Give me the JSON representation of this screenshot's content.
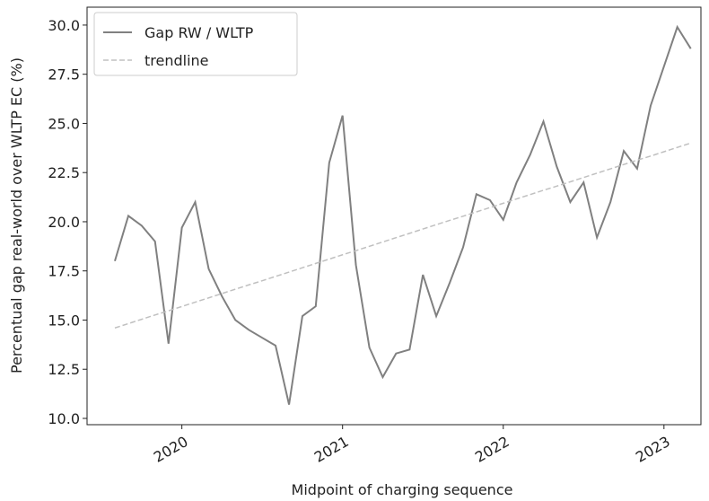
{
  "chart_data": {
    "type": "line",
    "xlabel": "Midpoint of charging sequence",
    "ylabel": "Percentual gap real-world over WLTP EC (%)",
    "x": [
      2019.583,
      2019.667,
      2019.75,
      2019.833,
      2019.917,
      2020,
      2020.083,
      2020.167,
      2020.25,
      2020.333,
      2020.417,
      2020.5,
      2020.583,
      2020.667,
      2020.75,
      2020.833,
      2020.917,
      2021,
      2021.083,
      2021.167,
      2021.25,
      2021.333,
      2021.417,
      2021.5,
      2021.583,
      2021.667,
      2021.75,
      2021.833,
      2021.917,
      2022,
      2022.083,
      2022.167,
      2022.25,
      2022.333,
      2022.417,
      2022.5,
      2022.583,
      2022.667,
      2022.75,
      2022.833,
      2022.917,
      2023,
      2023.083,
      2023.167
    ],
    "series": [
      {
        "name": "Gap RW / WLTP",
        "color": "#808080",
        "dash": false,
        "values": [
          18.0,
          20.3,
          19.8,
          19.0,
          13.8,
          19.7,
          21.0,
          17.6,
          16.2,
          15.0,
          14.5,
          14.1,
          13.7,
          10.7,
          15.2,
          15.7,
          23.0,
          25.4,
          17.8,
          13.6,
          12.1,
          13.3,
          13.5,
          17.3,
          15.2,
          16.9,
          18.7,
          21.4,
          21.1,
          20.1,
          22.0,
          23.4,
          25.1,
          22.8,
          21.0,
          22.0,
          19.2,
          21.0,
          23.6,
          22.7,
          25.9,
          27.9,
          29.9,
          28.8
        ]
      },
      {
        "name": "trendline",
        "color": "#c0c0c0",
        "dash": true,
        "values": [
          14.6,
          14.82,
          15.04,
          15.26,
          15.47,
          15.69,
          15.91,
          16.13,
          16.35,
          16.57,
          16.79,
          17.0,
          17.22,
          17.44,
          17.66,
          17.88,
          18.1,
          18.32,
          18.53,
          18.75,
          18.97,
          19.19,
          19.41,
          19.63,
          19.85,
          20.07,
          20.28,
          20.5,
          20.72,
          20.94,
          21.16,
          21.38,
          21.6,
          21.81,
          22.03,
          22.25,
          22.47,
          22.69,
          22.91,
          23.13,
          23.34,
          23.56,
          23.78,
          24.0
        ]
      }
    ],
    "xlim": [
      2019.41,
      2023.23
    ],
    "xticks": [
      2020,
      2021,
      2022,
      2023
    ],
    "ylim": [
      9.68,
      30.91
    ],
    "yticks": [
      {
        "value": 10,
        "label": "10.0"
      },
      {
        "value": 12.5,
        "label": "12.5"
      },
      {
        "value": 15,
        "label": "15.0"
      },
      {
        "value": 17.5,
        "label": "17.5"
      },
      {
        "value": 20,
        "label": "20.0"
      },
      {
        "value": 22.5,
        "label": "22.5"
      },
      {
        "value": 25,
        "label": "25.0"
      },
      {
        "value": 27.5,
        "label": "27.5"
      },
      {
        "value": 30,
        "label": "30.0"
      }
    ],
    "legend": "upper left"
  }
}
